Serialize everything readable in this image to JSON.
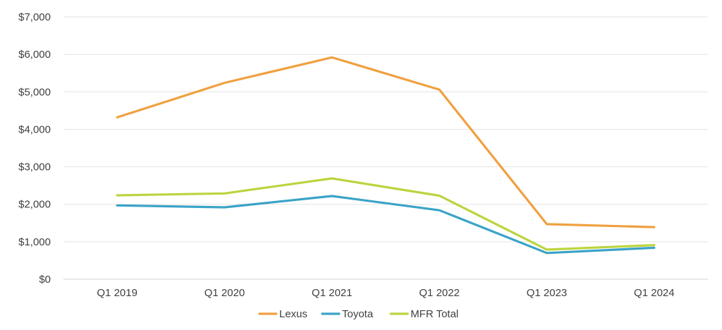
{
  "chart_data": {
    "type": "line",
    "title": "",
    "xlabel": "",
    "ylabel": "",
    "categories": [
      "Q1 2019",
      "Q1 2020",
      "Q1 2021",
      "Q1 2022",
      "Q1 2023",
      "Q1 2024"
    ],
    "ylim": [
      0,
      7000
    ],
    "yticks": [
      0,
      1000,
      2000,
      3000,
      4000,
      5000,
      6000,
      7000
    ],
    "ytick_labels": [
      "$0",
      "$1,000",
      "$2,000",
      "$3,000",
      "$4,000",
      "$5,000",
      "$6,000",
      "$7,000"
    ],
    "grid": true,
    "legend_position": "bottom",
    "series": [
      {
        "name": "Lexus",
        "color": "#f0a040",
        "values": [
          4320,
          5240,
          5920,
          5060,
          1470,
          1390
        ]
      },
      {
        "name": "Toyota",
        "color": "#3aa3c8",
        "values": [
          1970,
          1920,
          2220,
          1840,
          700,
          840
        ]
      },
      {
        "name": "MFR Total",
        "color": "#bcd43f",
        "values": [
          2240,
          2290,
          2690,
          2230,
          790,
          910
        ]
      }
    ]
  }
}
